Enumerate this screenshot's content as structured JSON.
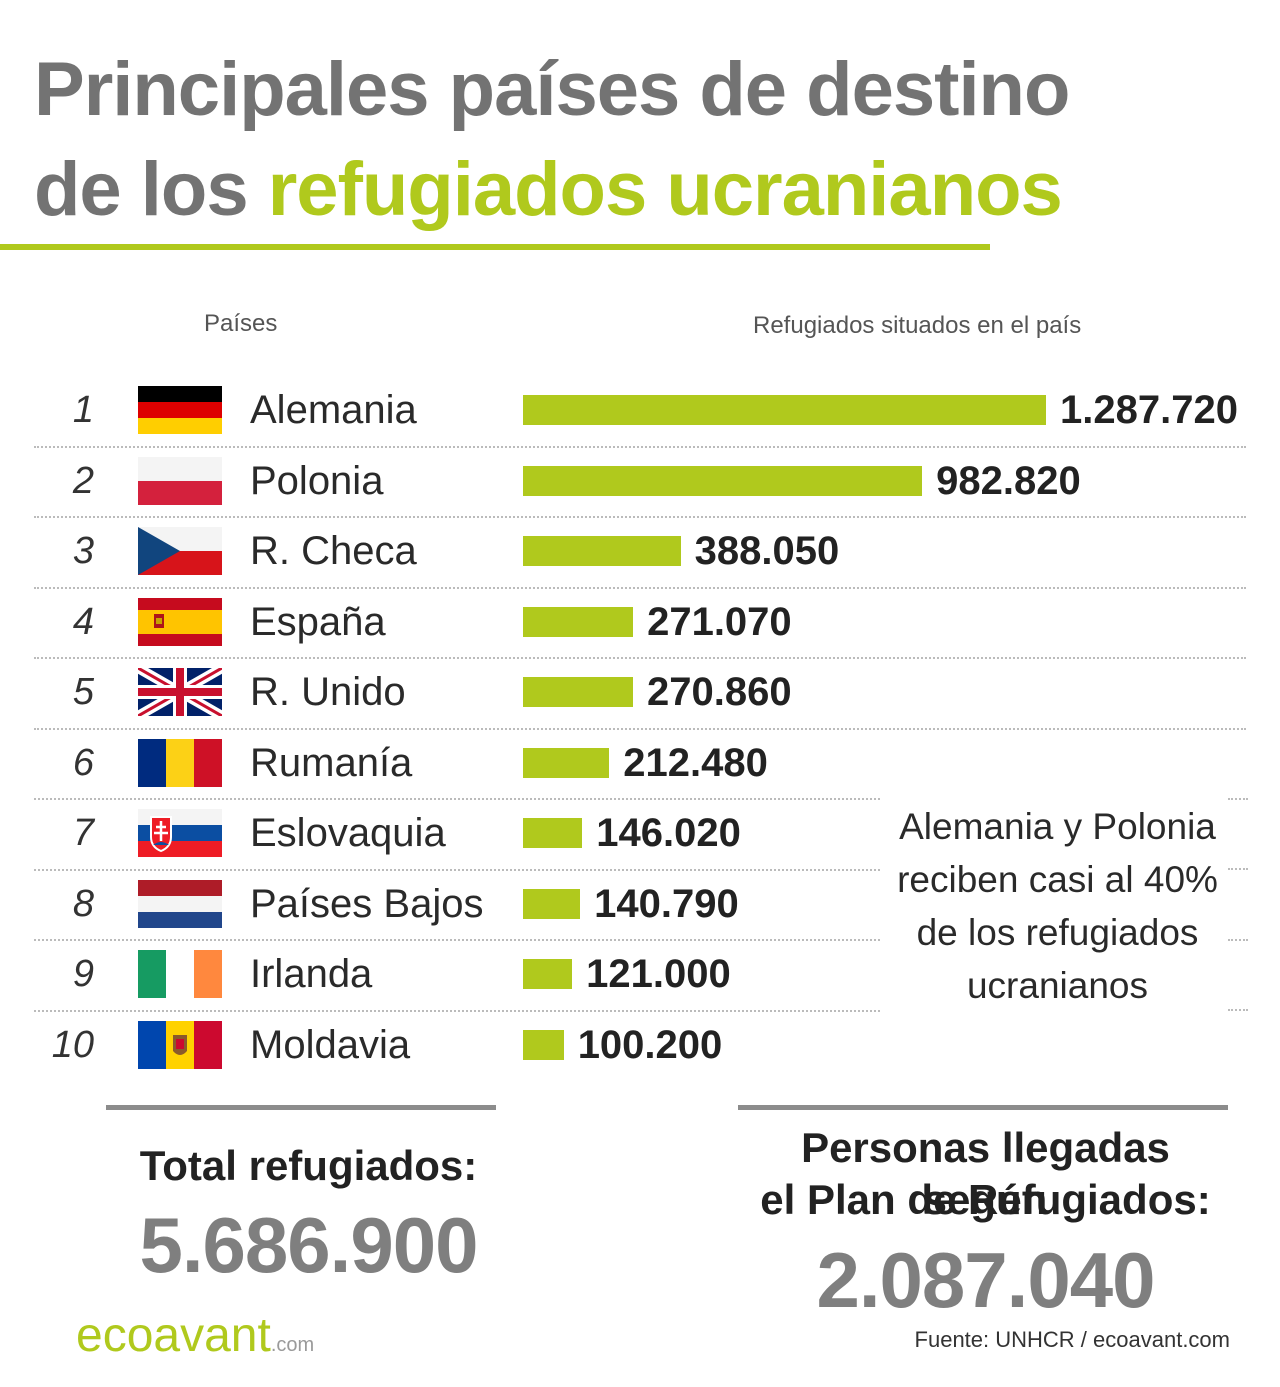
{
  "header": {
    "title_line1": "Principales países de destino",
    "title_line2_plain": "de los ",
    "title_line2_accent": "refugiados ucranianos"
  },
  "columns": {
    "countries": "Países",
    "refugees": "Refugiados situados en el país"
  },
  "chart_data": {
    "type": "bar",
    "orientation": "horizontal",
    "categories": [
      "Alemania",
      "Polonia",
      "R. Checa",
      "España",
      "R. Unido",
      "Rumanía",
      "Eslovaquia",
      "Países Bajos",
      "Irlanda",
      "Moldavia"
    ],
    "ranks": [
      "1",
      "2",
      "3",
      "4",
      "5",
      "6",
      "7",
      "8",
      "9",
      "10"
    ],
    "values": [
      1287720,
      982820,
      388050,
      271070,
      270860,
      212480,
      146020,
      140790,
      121000,
      100200
    ],
    "value_labels": [
      "1.287.720",
      "982.820",
      "388.050",
      "271.070",
      "270.860",
      "212.480",
      "146.020",
      "140.790",
      "121.000",
      "100.200"
    ],
    "flags": [
      "germany-flag",
      "poland-flag",
      "czech-flag",
      "spain-flag",
      "uk-flag",
      "romania-flag",
      "slovakia-flag",
      "netherlands-flag",
      "ireland-flag",
      "moldova-flag"
    ],
    "bar_color": "#b0c91d",
    "xlim": [
      0,
      1287720
    ]
  },
  "note": {
    "lines": [
      "Alemania y Polonia",
      "reciben casi al 40%",
      "de los refugiados",
      "ucranianos"
    ]
  },
  "summary": {
    "total_label": "Total refugiados:",
    "total_value": "5.686.900",
    "plan_label_line1": "Personas llegadas según",
    "plan_label_line2": "el Plan de Refugiados:",
    "plan_value": "2.087.040"
  },
  "footer": {
    "logo": "ecoavant",
    "logo_suffix": ".com",
    "source": "Fuente: UNHCR / ecoavant.com"
  },
  "colors": {
    "accent": "#b0c91d",
    "title_gray": "#737373",
    "summary_gray": "#7f7f7f"
  }
}
